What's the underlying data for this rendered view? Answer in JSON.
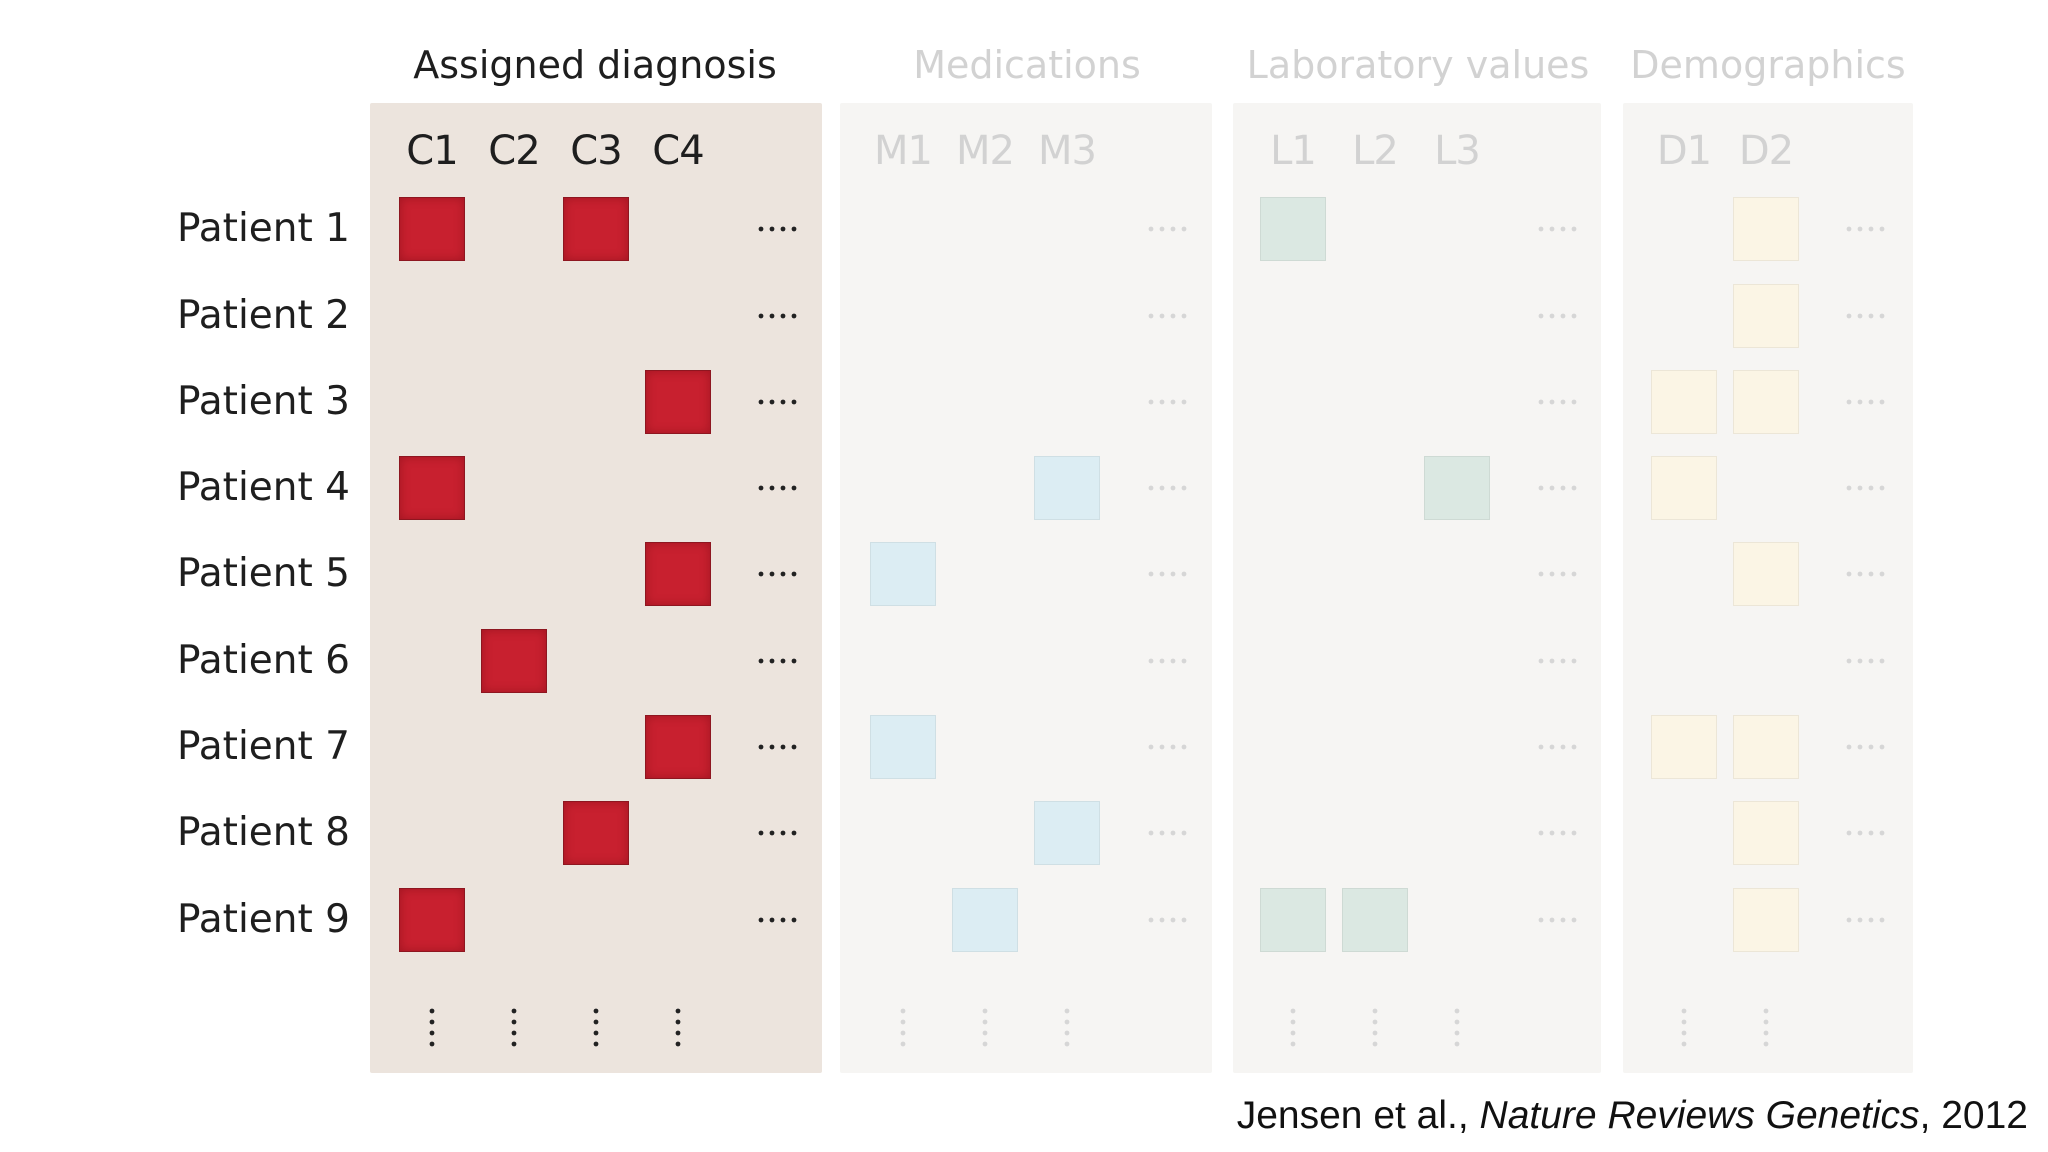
{
  "colors": {
    "diagnosis_panel": "#ece4dd",
    "faded_panel": "#f6f5f3",
    "diagnosis_cell": "#c8202f",
    "medication_cell": "#dcedf3",
    "lab_cell": "#dbe8e2",
    "demographic_cell": "#fbf5e5",
    "active_text": "#1e1e1e",
    "faded_text": "#d2d2d2"
  },
  "patients": [
    "Patient 1",
    "Patient 2",
    "Patient 3",
    "Patient 4",
    "Patient 5",
    "Patient 6",
    "Patient 7",
    "Patient 8",
    "Patient 9"
  ],
  "sections": [
    {
      "id": "diagnosis",
      "title": "Assigned diagnosis",
      "active": true,
      "columns": [
        "C1",
        "C2",
        "C3",
        "C4"
      ],
      "cell_color_key": "diagnosis_cell",
      "cells": [
        [
          1,
          1
        ],
        [
          1,
          3
        ],
        [
          3,
          4
        ],
        [
          4,
          1
        ],
        [
          5,
          4
        ],
        [
          6,
          2
        ],
        [
          7,
          4
        ],
        [
          8,
          3
        ],
        [
          9,
          1
        ]
      ]
    },
    {
      "id": "medications",
      "title": "Medications",
      "active": false,
      "columns": [
        "M1",
        "M2",
        "M3"
      ],
      "cell_color_key": "medication_cell",
      "cells": [
        [
          4,
          3
        ],
        [
          5,
          1
        ],
        [
          7,
          1
        ],
        [
          8,
          3
        ],
        [
          9,
          2
        ]
      ]
    },
    {
      "id": "laboratory",
      "title": "Laboratory values",
      "active": false,
      "columns": [
        "L1",
        "L2",
        "L3"
      ],
      "cell_color_key": "lab_cell",
      "cells": [
        [
          1,
          1
        ],
        [
          4,
          3
        ],
        [
          9,
          1
        ],
        [
          9,
          2
        ]
      ]
    },
    {
      "id": "demographics",
      "title": "Demographics",
      "active": false,
      "columns": [
        "D1",
        "D2"
      ],
      "cell_color_key": "demographic_cell",
      "cells": [
        [
          1,
          2
        ],
        [
          2,
          2
        ],
        [
          3,
          1
        ],
        [
          3,
          2
        ],
        [
          4,
          1
        ],
        [
          5,
          2
        ],
        [
          7,
          1
        ],
        [
          7,
          2
        ],
        [
          8,
          2
        ],
        [
          9,
          2
        ]
      ]
    }
  ],
  "citation": {
    "authors": "Jensen et al., ",
    "journal": "Nature Reviews Genetics",
    "year": ", 2012"
  }
}
